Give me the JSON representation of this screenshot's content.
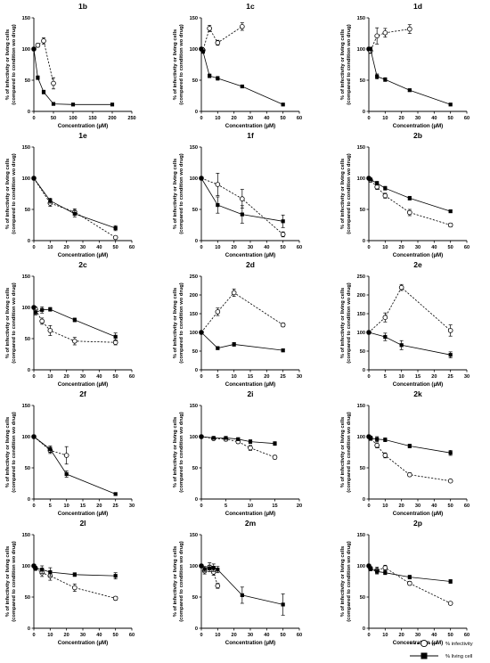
{
  "colors": {
    "ink": "#000000",
    "open_fill": "#ffffff",
    "background": "#ffffff"
  },
  "legend": {
    "infectivity": "% infectivity",
    "living": "% living cell"
  },
  "chart_data": [
    {
      "type": "line",
      "title": "1b",
      "xlabel": "Concentration (µM)",
      "ylabel": "% of infectivity or living cells (compared to condition wo drug)",
      "xlim": [
        0,
        250
      ],
      "ylim": [
        0,
        150
      ],
      "xticks": [
        0,
        50,
        100,
        150,
        200,
        250
      ],
      "yticks": [
        0,
        50,
        100,
        150
      ],
      "series": [
        {
          "name": "% infectivity",
          "x": [
            0,
            10,
            25,
            50
          ],
          "y": [
            100,
            106,
            113,
            45
          ],
          "err": [
            0,
            3,
            5,
            9
          ]
        },
        {
          "name": "% living cell",
          "x": [
            0,
            10,
            25,
            50,
            100,
            200
          ],
          "y": [
            100,
            54,
            31,
            12,
            11,
            11
          ],
          "err": [
            0,
            3,
            3,
            2,
            1,
            1
          ]
        }
      ]
    },
    {
      "type": "line",
      "title": "1c",
      "xlabel": "Concentration (µM)",
      "ylabel": "% of infectivity or living cells (compared to condition wo drug)",
      "xlim": [
        0,
        60
      ],
      "ylim": [
        0,
        150
      ],
      "xticks": [
        0,
        10,
        20,
        30,
        40,
        50,
        60
      ],
      "yticks": [
        0,
        50,
        100,
        150
      ],
      "series": [
        {
          "name": "% infectivity",
          "x": [
            0,
            1,
            5,
            10,
            25
          ],
          "y": [
            100,
            98,
            133,
            110,
            136
          ],
          "err": [
            0,
            3,
            5,
            4,
            6
          ]
        },
        {
          "name": "% living cell",
          "x": [
            0,
            1,
            5,
            10,
            25,
            50
          ],
          "y": [
            100,
            96,
            57,
            53,
            40,
            11
          ],
          "err": [
            0,
            3,
            3,
            3,
            2,
            1
          ]
        }
      ]
    },
    {
      "type": "line",
      "title": "1d",
      "xlabel": "Concentration (µM)",
      "ylabel": "% of infectivity or living cells (compared to condition wo drug)",
      "xlim": [
        0,
        60
      ],
      "ylim": [
        0,
        150
      ],
      "xticks": [
        0,
        10,
        20,
        30,
        40,
        50,
        60
      ],
      "yticks": [
        0,
        50,
        100,
        150
      ],
      "series": [
        {
          "name": "% infectivity",
          "x": [
            0,
            1,
            5,
            10,
            25
          ],
          "y": [
            100,
            97,
            121,
            126,
            132
          ],
          "err": [
            0,
            4,
            13,
            7,
            7
          ]
        },
        {
          "name": "% living cell",
          "x": [
            0,
            1,
            5,
            10,
            25,
            50
          ],
          "y": [
            100,
            100,
            56,
            51,
            34,
            11
          ],
          "err": [
            0,
            3,
            4,
            3,
            2,
            1
          ]
        }
      ]
    },
    {
      "type": "line",
      "title": "1e",
      "xlabel": "Concentration (µM)",
      "ylabel": "% of infectivity or living cells (compared to condition wo drug)",
      "xlim": [
        0,
        60
      ],
      "ylim": [
        0,
        150
      ],
      "xticks": [
        0,
        10,
        20,
        30,
        40,
        50,
        60
      ],
      "yticks": [
        0,
        50,
        100,
        150
      ],
      "series": [
        {
          "name": "% infectivity",
          "x": [
            0,
            10,
            25,
            50
          ],
          "y": [
            100,
            60,
            46,
            5
          ],
          "err": [
            0,
            5,
            5,
            2
          ]
        },
        {
          "name": "% living cell",
          "x": [
            0,
            10,
            25,
            50
          ],
          "y": [
            100,
            64,
            43,
            20
          ],
          "err": [
            0,
            4,
            5,
            4
          ]
        }
      ]
    },
    {
      "type": "line",
      "title": "1f",
      "xlabel": "Concentration (µM)",
      "ylabel": "% of infectivity or living cells (compared to condition wo drug)",
      "xlim": [
        0,
        60
      ],
      "ylim": [
        0,
        150
      ],
      "xticks": [
        0,
        10,
        20,
        30,
        40,
        50,
        60
      ],
      "yticks": [
        0,
        50,
        100,
        150
      ],
      "series": [
        {
          "name": "% infectivity",
          "x": [
            0,
            10,
            25,
            50
          ],
          "y": [
            100,
            90,
            67,
            10
          ],
          "err": [
            0,
            18,
            15,
            4
          ]
        },
        {
          "name": "% living cell",
          "x": [
            0,
            10,
            25,
            50
          ],
          "y": [
            100,
            57,
            42,
            31
          ],
          "err": [
            0,
            13,
            14,
            10
          ]
        }
      ]
    },
    {
      "type": "line",
      "title": "2b",
      "xlabel": "Concentration (µM)",
      "ylabel": "% of infectivity or living cells (compared to condition wo drug)",
      "xlim": [
        0,
        60
      ],
      "ylim": [
        0,
        150
      ],
      "xticks": [
        0,
        10,
        20,
        30,
        40,
        50,
        60
      ],
      "yticks": [
        0,
        50,
        100,
        150
      ],
      "series": [
        {
          "name": "% infectivity",
          "x": [
            0,
            1,
            5,
            10,
            25,
            50
          ],
          "y": [
            100,
            97,
            86,
            72,
            45,
            25
          ],
          "err": [
            0,
            3,
            4,
            4,
            5,
            3
          ]
        },
        {
          "name": "% living cell",
          "x": [
            0,
            1,
            5,
            10,
            25,
            50
          ],
          "y": [
            100,
            98,
            92,
            84,
            68,
            47
          ],
          "err": [
            0,
            2,
            3,
            3,
            3,
            2
          ]
        }
      ]
    },
    {
      "type": "line",
      "title": "2c",
      "xlabel": "Concentration (µM)",
      "ylabel": "% of infectivity or living cells (compared to condition wo drug)",
      "xlim": [
        0,
        60
      ],
      "ylim": [
        0,
        150
      ],
      "xticks": [
        0,
        10,
        20,
        30,
        40,
        50,
        60
      ],
      "yticks": [
        0,
        50,
        100,
        150
      ],
      "series": [
        {
          "name": "% infectivity",
          "x": [
            0,
            1,
            5,
            10,
            25,
            50
          ],
          "y": [
            100,
            97,
            78,
            63,
            46,
            44
          ],
          "err": [
            0,
            4,
            5,
            8,
            6,
            4
          ]
        },
        {
          "name": "% living cell",
          "x": [
            0,
            1,
            5,
            10,
            25,
            50
          ],
          "y": [
            100,
            92,
            96,
            97,
            80,
            53
          ],
          "err": [
            0,
            4,
            5,
            3,
            3,
            6
          ]
        }
      ]
    },
    {
      "type": "line",
      "title": "2d",
      "xlabel": "Concentration (µM)",
      "ylabel": "% of infectivity or living cells (compared to condition wo drug)",
      "xlim": [
        0,
        30
      ],
      "ylim": [
        0,
        250
      ],
      "xticks": [
        0,
        5,
        10,
        15,
        20,
        25,
        30
      ],
      "yticks": [
        0,
        50,
        100,
        150,
        200,
        250
      ],
      "series": [
        {
          "name": "% infectivity",
          "x": [
            0,
            5,
            10,
            25
          ],
          "y": [
            100,
            155,
            206,
            120
          ],
          "err": [
            0,
            10,
            10,
            5
          ]
        },
        {
          "name": "% living cell",
          "x": [
            0,
            5,
            10,
            25
          ],
          "y": [
            100,
            58,
            68,
            52
          ],
          "err": [
            0,
            4,
            5,
            4
          ]
        }
      ]
    },
    {
      "type": "line",
      "title": "2e",
      "xlabel": "Concentration (µM)",
      "ylabel": "% of infectivity or living cells (compared to condition wo drug)",
      "xlim": [
        0,
        30
      ],
      "ylim": [
        0,
        250
      ],
      "xticks": [
        0,
        5,
        10,
        15,
        20,
        25,
        30
      ],
      "yticks": [
        0,
        50,
        100,
        150,
        200,
        250
      ],
      "series": [
        {
          "name": "% infectivity",
          "x": [
            0,
            5,
            10,
            25
          ],
          "y": [
            100,
            140,
            220,
            105
          ],
          "err": [
            0,
            12,
            8,
            15
          ]
        },
        {
          "name": "% living cell",
          "x": [
            0,
            5,
            10,
            25
          ],
          "y": [
            100,
            88,
            66,
            40
          ],
          "err": [
            0,
            10,
            12,
            8
          ]
        }
      ]
    },
    {
      "type": "line",
      "title": "2f",
      "xlabel": "Concentration (µM)",
      "ylabel": "% of infectivity or living cells (compared to condition wo drug)",
      "xlim": [
        0,
        30
      ],
      "ylim": [
        0,
        150
      ],
      "xticks": [
        0,
        5,
        10,
        15,
        20,
        25,
        30
      ],
      "yticks": [
        0,
        50,
        100,
        150
      ],
      "series": [
        {
          "name": "% infectivity",
          "x": [
            0,
            5,
            10
          ],
          "y": [
            100,
            78,
            70
          ],
          "err": [
            0,
            5,
            14
          ]
        },
        {
          "name": "% living cell",
          "x": [
            0,
            5,
            10,
            25
          ],
          "y": [
            100,
            80,
            40,
            8
          ],
          "err": [
            0,
            5,
            5,
            2
          ]
        }
      ]
    },
    {
      "type": "line",
      "title": "2i",
      "xlabel": "Concentration (µM)",
      "ylabel": "% of infectivity or living cells (compared to condition wo drug)",
      "xlim": [
        0,
        20
      ],
      "ylim": [
        0,
        150
      ],
      "xticks": [
        0,
        5,
        10,
        15,
        20
      ],
      "yticks": [
        0,
        50,
        100,
        150
      ],
      "series": [
        {
          "name": "% infectivity",
          "x": [
            0,
            2.5,
            5,
            7.5,
            10,
            15
          ],
          "y": [
            100,
            97,
            96,
            92,
            82,
            67
          ],
          "err": [
            0,
            2,
            3,
            3,
            4,
            3
          ]
        },
        {
          "name": "% living cell",
          "x": [
            0,
            2.5,
            5,
            7.5,
            10,
            15
          ],
          "y": [
            100,
            98,
            98,
            96,
            92,
            89
          ],
          "err": [
            0,
            2,
            2,
            2,
            3,
            3
          ]
        }
      ]
    },
    {
      "type": "line",
      "title": "2k",
      "xlabel": "Concentration (µM)",
      "ylabel": "% of infectivity or living cells (compared to condition wo drug)",
      "xlim": [
        0,
        60
      ],
      "ylim": [
        0,
        150
      ],
      "xticks": [
        0,
        10,
        20,
        30,
        40,
        50,
        60
      ],
      "yticks": [
        0,
        50,
        100,
        150
      ],
      "series": [
        {
          "name": "% infectivity",
          "x": [
            0,
            1,
            5,
            10,
            25,
            50
          ],
          "y": [
            100,
            98,
            86,
            70,
            39,
            29
          ],
          "err": [
            0,
            3,
            4,
            4,
            3,
            2
          ]
        },
        {
          "name": "% living cell",
          "x": [
            0,
            1,
            5,
            10,
            25,
            50
          ],
          "y": [
            100,
            97,
            96,
            95,
            85,
            74
          ],
          "err": [
            0,
            3,
            4,
            3,
            3,
            4
          ]
        }
      ]
    },
    {
      "type": "line",
      "title": "2l",
      "xlabel": "Concentration (µM)",
      "ylabel": "% of infectivity or living cells (compared to condition wo drug)",
      "xlim": [
        0,
        60
      ],
      "ylim": [
        0,
        150
      ],
      "xticks": [
        0,
        10,
        20,
        30,
        40,
        50,
        60
      ],
      "yticks": [
        0,
        50,
        100,
        150
      ],
      "series": [
        {
          "name": "% infectivity",
          "x": [
            0,
            1,
            5,
            10,
            25,
            50
          ],
          "y": [
            100,
            96,
            89,
            84,
            65,
            48
          ],
          "err": [
            0,
            3,
            6,
            7,
            6,
            3
          ]
        },
        {
          "name": "% living cell",
          "x": [
            0,
            1,
            5,
            10,
            25,
            50
          ],
          "y": [
            100,
            96,
            94,
            90,
            86,
            84
          ],
          "err": [
            0,
            3,
            6,
            7,
            3,
            5
          ]
        }
      ]
    },
    {
      "type": "line",
      "title": "2m",
      "xlabel": "Concentration (µM)",
      "ylabel": "% of infectivity or living cells (compared to condition wo drug)",
      "xlim": [
        0,
        60
      ],
      "ylim": [
        0,
        150
      ],
      "xticks": [
        0,
        10,
        20,
        30,
        40,
        50,
        60
      ],
      "yticks": [
        0,
        50,
        100,
        150
      ],
      "series": [
        {
          "name": "% infectivity",
          "x": [
            0,
            2,
            5,
            7.5,
            10
          ],
          "y": [
            100,
            92,
            98,
            90,
            68
          ],
          "err": [
            0,
            5,
            7,
            5,
            4
          ]
        },
        {
          "name": "% living cell",
          "x": [
            0,
            2,
            5,
            7.5,
            10,
            25,
            50
          ],
          "y": [
            100,
            95,
            96,
            97,
            94,
            53,
            38
          ],
          "err": [
            0,
            4,
            5,
            6,
            5,
            13,
            17
          ]
        }
      ]
    },
    {
      "type": "line",
      "title": "2p",
      "xlabel": "Concentration (µM)",
      "ylabel": "% of infectivity or living cells (compared to condition wo drug)",
      "xlim": [
        0,
        60
      ],
      "ylim": [
        0,
        150
      ],
      "xticks": [
        0,
        10,
        20,
        30,
        40,
        50,
        60
      ],
      "yticks": [
        0,
        50,
        100,
        150
      ],
      "series": [
        {
          "name": "% infectivity",
          "x": [
            0,
            1,
            5,
            10,
            25,
            50
          ],
          "y": [
            100,
            96,
            93,
            97,
            72,
            40
          ],
          "err": [
            0,
            3,
            5,
            4,
            3,
            2
          ]
        },
        {
          "name": "% living cell",
          "x": [
            0,
            1,
            5,
            10,
            25,
            50
          ],
          "y": [
            100,
            95,
            91,
            89,
            82,
            75
          ],
          "err": [
            0,
            3,
            4,
            3,
            3,
            3
          ]
        }
      ]
    }
  ]
}
